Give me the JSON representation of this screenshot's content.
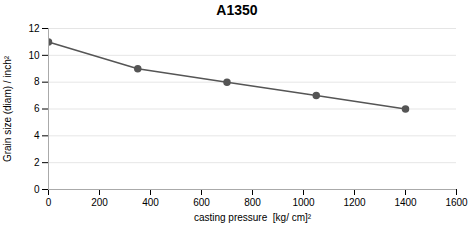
{
  "chart_data": {
    "type": "line",
    "title": "A1350",
    "xlabel": "casting pressure  [kg/ cm]²",
    "ylabel": "Grain size (diam) / inch²",
    "x": [
      0,
      350,
      700,
      1050,
      1400
    ],
    "values": [
      11,
      9,
      8,
      7,
      6
    ],
    "color": "#555555",
    "marker": "o",
    "xlim": [
      0,
      1600
    ],
    "ylim": [
      0,
      12
    ],
    "xticks": [
      0,
      200,
      400,
      600,
      800,
      1000,
      1200,
      1400,
      1600
    ],
    "yticks": [
      0,
      2,
      4,
      6,
      8,
      10,
      12
    ],
    "grid": true
  }
}
